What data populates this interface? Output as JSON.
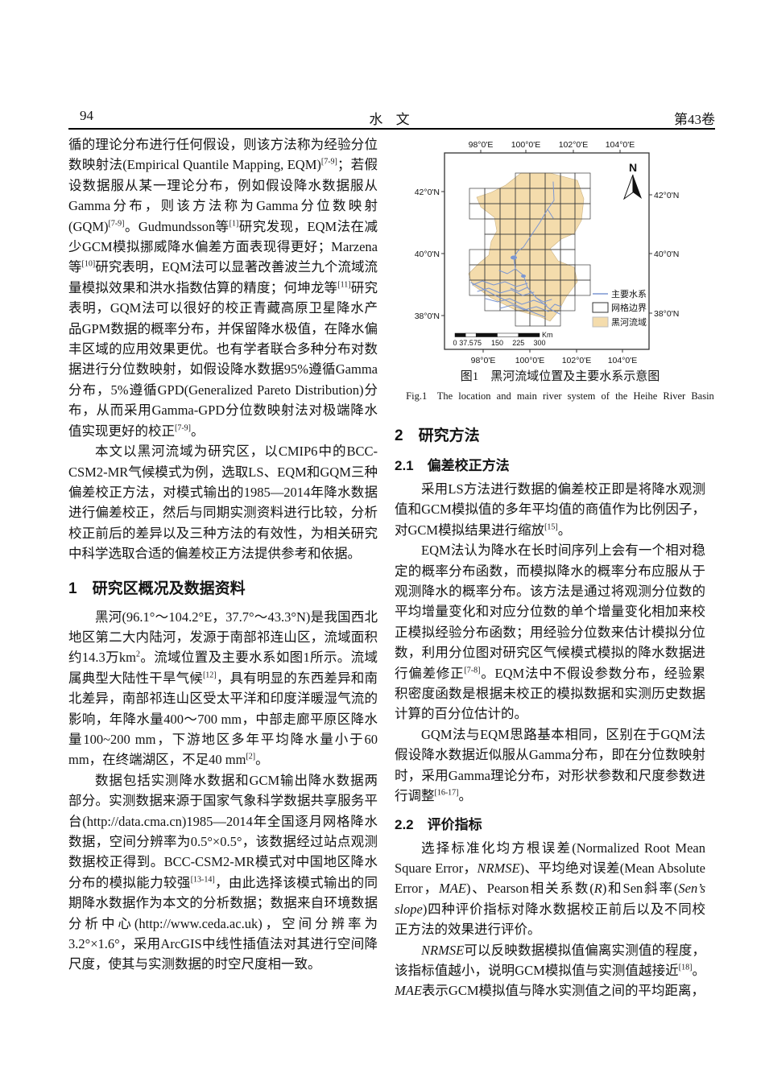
{
  "page_header": {
    "page_number": "94",
    "journal_title": "水 文",
    "volume": "第43卷"
  },
  "left_column": {
    "blocks": [
      {
        "type": "p",
        "indent": false,
        "runs": [
          {
            "t": "循的理论分布进行任何假设，则该方法称为经验分位数映射法(Empirical Quantile Mapping, EQM)"
          },
          {
            "t": "[7-9]",
            "s": "sup"
          },
          {
            "t": "；若假设数据服从某一理论分布，例如假设降水数据服从Gamma分布，则该方法称为Gamma分位数映射(GQM)"
          },
          {
            "t": "[7-9]",
            "s": "sup"
          },
          {
            "t": "。Gudmundsson等"
          },
          {
            "t": "[1]",
            "s": "sup"
          },
          {
            "t": "研究发现，EQM法在减少GCM模拟挪威降水偏差方面表现得更好；Marzena等"
          },
          {
            "t": "[10]",
            "s": "sup"
          },
          {
            "t": "研究表明，EQM法可以显著改善波兰九个流域流量模拟效果和洪水指数估算的精度；何坤龙等"
          },
          {
            "t": "[11]",
            "s": "sup"
          },
          {
            "t": "研究表明，GQM法可以很好的校正青藏高原卫星降水产品GPM数据的概率分布，并保留降水极值，在降水偏丰区域的应用效果更优。也有学者联合多种分布对数据进行分位数映射，如假设降水数据95%遵循Gamma分布，5%遵循GPD(Generalized Pareto Distribution)分布，从而采用Gamma-GPD分位数映射法对极端降水值实现更好的校正"
          },
          {
            "t": "[7-9]",
            "s": "sup"
          },
          {
            "t": "。"
          }
        ]
      },
      {
        "type": "p",
        "indent": true,
        "runs": [
          {
            "t": "本文以黑河流域为研究区，以CMIP6中的BCC-CSM2-MR气候模式为例，选取LS、EQM和GQM三种偏差校正方法，对模式输出的1985—2014年降水数据进行偏差校正，然后与同期实测资料进行比较，分析校正前后的差异以及三种方法的有效性，为相关研究中科学选取合适的偏差校正方法提供参考和依据。"
          }
        ]
      },
      {
        "type": "h1",
        "text": "1　研究区概况及数据资料"
      },
      {
        "type": "p",
        "indent": true,
        "runs": [
          {
            "t": "黑河(96.1°～104.2°E，37.7°～43.3°N)是我国西北地区第二大内陆河，发源于南部祁连山区，流域面积约14.3万km"
          },
          {
            "t": "2",
            "s": "sup"
          },
          {
            "t": "。流域位置及主要水系如图1所示。流域属典型大陆性干旱气候"
          },
          {
            "t": "[12]",
            "s": "sup"
          },
          {
            "t": "，具有明显的东西差异和南北差异，南部祁连山区受太平洋和印度洋暖湿气流的影响，年降水量400～700 mm，中部走廊平原区降水量100~200 mm，下游地区多年平均降水量小于60 mm，在终端湖区，不足40 mm"
          },
          {
            "t": "[2]",
            "s": "sup"
          },
          {
            "t": "。"
          }
        ]
      },
      {
        "type": "p",
        "indent": true,
        "runs": [
          {
            "t": "数据包括实测降水数据和GCM输出降水数据两部分。实测数据来源于国家气象科学数据共享服务平台(http://data.cma.cn)1985—2014年全国逐月网格降水数据，空间分辨率为0.5°×0.5°，该数据经过站点观测数据校正得到。BCC-CSM2-MR模式对中国地区降水分布的模拟能力较强"
          },
          {
            "t": "[13-14]",
            "s": "sup"
          },
          {
            "t": "，由此选择该模式输出的同期降水数据作为本文的分析数据；数据来自环境数据分析中心(http://www.ceda.ac.uk)，空间分辨率为3.2°×1.6°，采用ArcGIS中线性插值法对其进行空间降尺度，使其与实测数据的时空尺度相一致。"
          }
        ]
      }
    ]
  },
  "figure": {
    "caption_zh": "图1　黑河流域位置及主要水系示意图",
    "caption_en": "Fig.1　The location and main river system of the Heihe River Basin",
    "north_label": "N",
    "axis": {
      "top": [
        "98°0'E",
        "100°0'E",
        "102°0'E",
        "104°0'E"
      ],
      "bottom": [
        "98°0'E",
        "100°0'E",
        "102°0'E",
        "104°0'E"
      ],
      "left": [
        "42°0'N",
        "40°0'N",
        "38°0'N"
      ],
      "right": [
        "42°0'N",
        "40°0'N",
        "38°0'N"
      ]
    },
    "legend": [
      {
        "label": "主要水系",
        "symbol": "river-line"
      },
      {
        "label": "网格边界",
        "symbol": "grid-outline-box"
      },
      {
        "label": "黑河流域",
        "symbol": "basin-fill-box"
      }
    ],
    "scalebar": {
      "labels": [
        "0",
        "37.5",
        "75",
        "150",
        "225",
        "300"
      ],
      "unit": "Km"
    },
    "colors": {
      "basin": "#F4DCAC",
      "river": "#7B96D2",
      "grid_line": "#3a3a3a"
    }
  },
  "right_column": {
    "blocks": [
      {
        "type": "h1",
        "text": "2　研究方法"
      },
      {
        "type": "h2",
        "text": "2.1　偏差校正方法"
      },
      {
        "type": "p",
        "indent": true,
        "runs": [
          {
            "t": "采用LS方法进行数据的偏差校正即是将降水观测值和GCM模拟值的多年平均值的商值作为比例因子，对GCM模拟结果进行缩放"
          },
          {
            "t": "[15]",
            "s": "sup"
          },
          {
            "t": "。"
          }
        ]
      },
      {
        "type": "p",
        "indent": true,
        "runs": [
          {
            "t": "EQM法认为降水在长时间序列上会有一个相对稳定的概率分布函数，而模拟降水的概率分布应服从于观测降水的概率分布。该方法是通过将观测分位数的平均增量变化和对应分位数的单个增量变化相加来校正模拟经验分布函数；用经验分位数来估计模拟分位数，利用分位图对研究区气候模式模拟的降水数据进行偏差修正"
          },
          {
            "t": "[7-8]",
            "s": "sup"
          },
          {
            "t": "。EQM法中不假设参数分布，经验累积密度函数是根据未校正的模拟数据和实测历史数据计算的百分位估计的。"
          }
        ]
      },
      {
        "type": "p",
        "indent": true,
        "runs": [
          {
            "t": "GQM法与EQM思路基本相同，区别在于GQM法假设降水数据近似服从Gamma分布，即在分位数映射时，采用Gamma理论分布，对形状参数和尺度参数进行调整"
          },
          {
            "t": "[16-17]",
            "s": "sup"
          },
          {
            "t": "。"
          }
        ]
      },
      {
        "type": "h2",
        "text": "2.2　评价指标"
      },
      {
        "type": "p",
        "indent": true,
        "runs": [
          {
            "t": "选择标准化均方根误差(Normalized Root Mean Square Error，"
          },
          {
            "t": "NRMSE",
            "s": "i"
          },
          {
            "t": ")、平均绝对误差(Mean Absolute Error，"
          },
          {
            "t": "MAE",
            "s": "i"
          },
          {
            "t": ")、Pearson相关系数("
          },
          {
            "t": "R",
            "s": "i"
          },
          {
            "t": ")和Sen斜率("
          },
          {
            "t": "Sen’s slope",
            "s": "i"
          },
          {
            "t": ")四种评价指标对降水数据校正前后以及不同校正方法的效果进行评价。"
          }
        ]
      },
      {
        "type": "p",
        "indent": true,
        "runs": [
          {
            "t": "NRMSE",
            "s": "i"
          },
          {
            "t": "可以反映数据模拟值偏离实测值的程度，该指标值越小，说明GCM模拟值与实测值越接近"
          },
          {
            "t": "[18]",
            "s": "sup"
          },
          {
            "t": "。"
          },
          {
            "t": "MAE",
            "s": "i"
          },
          {
            "t": "表示GCM模拟值与降水实测值之间的平均距离，"
          }
        ]
      }
    ]
  }
}
